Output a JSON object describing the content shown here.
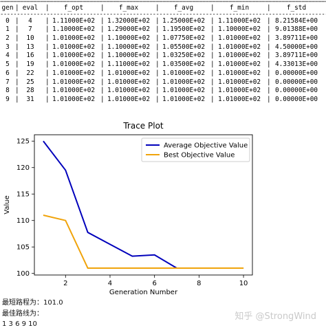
{
  "table": {
    "headers": [
      "gen",
      "eval",
      "f_opt",
      "f_max",
      "f_avg",
      "f_min",
      "f_std"
    ],
    "rows": [
      [
        "0",
        "4",
        "1.11000E+02",
        "1.32000E+02",
        "1.25000E+02",
        "1.11000E+02",
        "8.21584E+00"
      ],
      [
        "1",
        "7",
        "1.10000E+02",
        "1.29000E+02",
        "1.19500E+02",
        "1.10000E+02",
        "9.01388E+00"
      ],
      [
        "2",
        "10",
        "1.01000E+02",
        "1.10000E+02",
        "1.07750E+02",
        "1.01000E+02",
        "3.89711E+00"
      ],
      [
        "3",
        "13",
        "1.01000E+02",
        "1.10000E+02",
        "1.05500E+02",
        "1.01000E+02",
        "4.50000E+00"
      ],
      [
        "4",
        "16",
        "1.01000E+02",
        "1.10000E+02",
        "1.03250E+02",
        "1.01000E+02",
        "3.89711E+00"
      ],
      [
        "5",
        "19",
        "1.01000E+02",
        "1.11000E+02",
        "1.03500E+02",
        "1.01000E+02",
        "4.33013E+00"
      ],
      [
        "6",
        "22",
        "1.01000E+02",
        "1.01000E+02",
        "1.01000E+02",
        "1.01000E+02",
        "0.00000E+00"
      ],
      [
        "7",
        "25",
        "1.01000E+02",
        "1.01000E+02",
        "1.01000E+02",
        "1.01000E+02",
        "0.00000E+00"
      ],
      [
        "8",
        "28",
        "1.01000E+02",
        "1.01000E+02",
        "1.01000E+02",
        "1.01000E+02",
        "0.00000E+00"
      ],
      [
        "9",
        "31",
        "1.01000E+02",
        "1.01000E+02",
        "1.01000E+02",
        "1.01000E+02",
        "0.00000E+00"
      ]
    ]
  },
  "chart_data": {
    "type": "line",
    "title": "Trace Plot",
    "xlabel": "Generation Number",
    "ylabel": "Value",
    "xlim": [
      0.6,
      10.4
    ],
    "ylim": [
      99.7,
      126.2
    ],
    "xticks": [
      "2",
      "4",
      "6",
      "8",
      "10"
    ],
    "yticks": [
      "100",
      "105",
      "110",
      "115",
      "120",
      "125"
    ],
    "legend_position": "top-right",
    "grid": false,
    "x": [
      1,
      2,
      3,
      4,
      5,
      6,
      7,
      8,
      9,
      10
    ],
    "series": [
      {
        "name": "Average Objective Value",
        "color": "#0000bb",
        "values": [
          125.0,
          119.5,
          107.75,
          105.5,
          103.25,
          103.5,
          101.0,
          101.0,
          101.0,
          101.0
        ]
      },
      {
        "name": "Best Objective Value",
        "color": "#f0a30a",
        "values": [
          111.0,
          110.0,
          101.0,
          101.0,
          101.0,
          101.0,
          101.0,
          101.0,
          101.0,
          101.0
        ]
      }
    ]
  },
  "footer": {
    "line1": "最短路程为：101.0",
    "line2": "最佳路线为：",
    "line3": "1 3 6 9 10"
  },
  "watermark": "知乎 @StrongWind"
}
